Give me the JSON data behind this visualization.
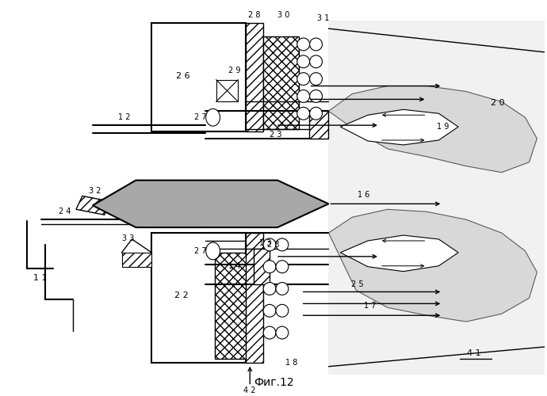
{
  "title": "Фиг.12",
  "bg_color": "#ffffff",
  "fig_width": 6.9,
  "fig_height": 5.0,
  "dpi": 100
}
